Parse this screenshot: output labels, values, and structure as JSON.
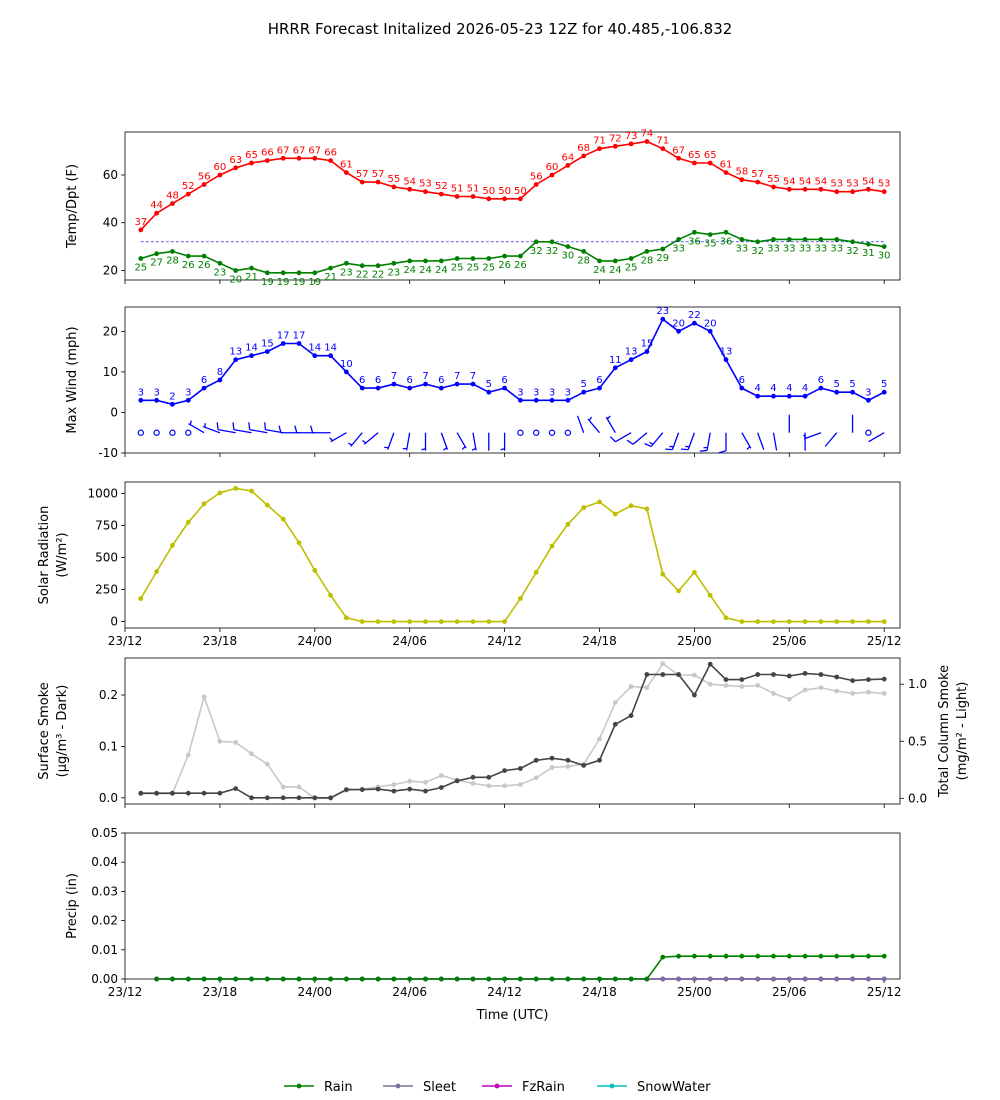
{
  "title": "HRRR Forecast Initalized 2026-05-23 12Z for 40.485,-106.832",
  "x_axis": {
    "label": "Time (UTC)",
    "ticks": [
      "23/12",
      "23/18",
      "24/00",
      "24/06",
      "24/12",
      "24/18",
      "25/00",
      "25/06",
      "25/12"
    ]
  },
  "colors": {
    "temp": "#ff0000",
    "dewpoint": "#008000",
    "wind": "#0000ff",
    "solar": "#bfbf00",
    "smoke_surface": "#444444",
    "smoke_column": "#c8c8c8",
    "rain": "#008000",
    "sleet": "#7f6f9f",
    "fzrain": "#bf00bf",
    "snowwater": "#00bfbf"
  },
  "chart_data": [
    {
      "type": "line",
      "ylabel": "Temp/Dpt (F)",
      "ylim": [
        16,
        78
      ],
      "yticks": [
        20,
        40,
        60
      ],
      "x_hours": [
        1,
        2,
        3,
        4,
        5,
        6,
        7,
        8,
        9,
        10,
        11,
        12,
        13,
        14,
        15,
        16,
        17,
        18,
        19,
        20,
        21,
        22,
        23,
        24,
        25,
        26,
        27,
        28,
        29,
        30,
        31,
        32,
        33,
        34,
        35,
        36,
        37,
        38,
        39,
        40,
        41,
        42,
        43,
        44,
        45,
        46,
        47,
        48
      ],
      "reference_line": 32,
      "series": [
        {
          "key": "temp",
          "values": [
            37,
            44,
            48,
            52,
            56,
            60,
            63,
            65,
            66,
            67,
            67,
            67,
            66,
            61,
            57,
            57,
            55,
            54,
            53,
            52,
            51,
            51,
            50,
            50,
            50,
            56,
            60,
            64,
            68,
            71,
            72,
            73,
            74,
            71,
            67,
            65,
            65,
            61,
            58,
            57,
            55,
            54,
            54,
            54,
            53,
            53,
            54,
            53
          ]
        },
        {
          "key": "dewpoint",
          "values": [
            25,
            27,
            28,
            26,
            26,
            23,
            20,
            21,
            19,
            19,
            19,
            19,
            21,
            23,
            22,
            22,
            23,
            24,
            24,
            24,
            25,
            25,
            25,
            26,
            26,
            32,
            32,
            30,
            28,
            24,
            24,
            25,
            28,
            29,
            33,
            36,
            35,
            36,
            33,
            32,
            33,
            33,
            33,
            33,
            33,
            32,
            31,
            30
          ]
        }
      ]
    },
    {
      "type": "line",
      "ylabel": "Max Wind (mph)",
      "ylim": [
        -10,
        26
      ],
      "yticks": [
        -10,
        0,
        10,
        20
      ],
      "x_hours": [
        1,
        2,
        3,
        4,
        5,
        6,
        7,
        8,
        9,
        10,
        11,
        12,
        13,
        14,
        15,
        16,
        17,
        18,
        19,
        20,
        21,
        22,
        23,
        24,
        25,
        26,
        27,
        28,
        29,
        30,
        31,
        32,
        33,
        34,
        35,
        36,
        37,
        38,
        39,
        40,
        41,
        42,
        43,
        44,
        45,
        46,
        47,
        48
      ],
      "series": [
        {
          "key": "wind",
          "values": [
            3,
            3,
            2,
            3,
            6,
            8,
            13,
            14,
            15,
            17,
            17,
            14,
            14,
            10,
            6,
            6,
            7,
            6,
            7,
            6,
            7,
            7,
            5,
            6,
            3,
            3,
            3,
            3,
            5,
            6,
            11,
            13,
            15,
            23,
            20,
            22,
            20,
            13,
            6,
            4,
            4,
            4,
            4,
            6,
            5,
            5,
            3,
            5
          ]
        }
      ],
      "wind_barbs": {
        "baseline": -5,
        "direction_deg": [
          240,
          0,
          0,
          330,
          300,
          290,
          280,
          280,
          280,
          280,
          270,
          270,
          270,
          240,
          220,
          230,
          200,
          190,
          180,
          160,
          150,
          170,
          180,
          180,
          0,
          0,
          160,
          0,
          340,
          320,
          330,
          240,
          230,
          220,
          200,
          200,
          190,
          180,
          150,
          160,
          170,
          0,
          180,
          250,
          220,
          0,
          240,
          240
        ]
      }
    },
    {
      "type": "line",
      "ylabel": "Solar Radiation",
      "ylabel_units": "(W/m²)",
      "ylim": [
        -50,
        1090
      ],
      "yticks": [
        0,
        250,
        500,
        750,
        1000
      ],
      "x_hours": [
        1,
        2,
        3,
        4,
        5,
        6,
        7,
        8,
        9,
        10,
        11,
        12,
        13,
        14,
        15,
        16,
        17,
        18,
        19,
        20,
        21,
        22,
        23,
        24,
        25,
        26,
        27,
        28,
        29,
        30,
        31,
        32,
        33,
        34,
        35,
        36,
        37,
        38,
        39,
        40,
        41,
        42,
        43,
        44,
        45,
        46,
        47,
        48
      ],
      "series": [
        {
          "key": "solar",
          "values": [
            180,
            390,
            595,
            775,
            920,
            1005,
            1040,
            1020,
            910,
            800,
            615,
            400,
            205,
            30,
            0,
            0,
            0,
            0,
            0,
            0,
            0,
            0,
            0,
            0,
            180,
            385,
            590,
            760,
            890,
            935,
            840,
            905,
            880,
            370,
            240,
            385,
            205,
            30,
            0,
            0,
            0,
            0,
            0,
            0,
            0,
            0,
            0,
            0
          ]
        }
      ]
    },
    {
      "type": "line",
      "ylabel": "Surface Smoke",
      "ylabel_units": "(μg/m³ - Dark)",
      "ylabel_right": "Total Column Smoke",
      "ylabel_right_units": "(mg/m² - Light)",
      "ylim": [
        -0.012,
        0.272
      ],
      "yticks": [
        0.0,
        0.1,
        0.2
      ],
      "ylim_right": [
        -0.05,
        1.23
      ],
      "yticks_right": [
        0.0,
        0.5,
        1.0
      ],
      "x_hours": [
        1,
        2,
        3,
        4,
        5,
        6,
        7,
        8,
        9,
        10,
        11,
        12,
        13,
        14,
        15,
        16,
        17,
        18,
        19,
        20,
        21,
        22,
        23,
        24,
        25,
        26,
        27,
        28,
        29,
        30,
        31,
        32,
        33,
        34,
        35,
        36,
        37,
        38,
        39,
        40,
        41,
        42,
        43,
        44,
        45,
        46,
        47,
        48
      ],
      "series": [
        {
          "key": "smoke_surface",
          "axis": "left",
          "values": [
            0.009,
            0.009,
            0.009,
            0.009,
            0.009,
            0.009,
            0.018,
            0.0,
            0.0,
            0.0,
            0.0,
            0.0,
            0.0,
            0.016,
            0.016,
            0.017,
            0.013,
            0.017,
            0.013,
            0.02,
            0.033,
            0.04,
            0.04,
            0.053,
            0.057,
            0.073,
            0.077,
            0.073,
            0.063,
            0.073,
            0.143,
            0.16,
            0.24,
            0.24,
            0.24,
            0.2,
            0.26,
            0.23,
            0.23,
            0.24,
            0.24,
            0.237,
            0.242,
            0.24,
            0.235,
            0.228,
            0.23,
            0.231
          ]
        },
        {
          "key": "smoke_column",
          "axis": "right",
          "values": [
            0.04,
            0.04,
            0.04,
            0.38,
            0.89,
            0.5,
            0.49,
            0.39,
            0.3,
            0.1,
            0.1,
            0.0,
            0.0,
            0.07,
            0.08,
            0.1,
            0.12,
            0.15,
            0.14,
            0.2,
            0.16,
            0.13,
            0.11,
            0.11,
            0.12,
            0.18,
            0.27,
            0.28,
            0.3,
            0.52,
            0.84,
            0.98,
            0.97,
            1.18,
            1.08,
            1.08,
            1.0,
            0.99,
            0.98,
            0.99,
            0.92,
            0.87,
            0.95,
            0.97,
            0.94,
            0.92,
            0.93,
            0.92
          ]
        }
      ]
    },
    {
      "type": "line",
      "ylabel": "Precip (in)",
      "ylim": [
        0.0,
        0.05
      ],
      "yticks": [
        "0.00",
        "0.01",
        "0.02",
        "0.03",
        "0.04",
        "0.05"
      ],
      "x_hours": [
        2,
        3,
        4,
        5,
        6,
        7,
        8,
        9,
        10,
        11,
        12,
        13,
        14,
        15,
        16,
        17,
        18,
        19,
        20,
        21,
        22,
        23,
        24,
        25,
        26,
        27,
        28,
        29,
        30,
        31,
        32,
        33,
        34,
        35,
        36,
        37,
        38,
        39,
        40,
        41,
        42,
        43,
        44,
        45,
        46,
        47,
        48
      ],
      "series": [
        {
          "key": "rain",
          "name": "Rain",
          "values": [
            0,
            0,
            0,
            0,
            0,
            0,
            0,
            0,
            0,
            0,
            0,
            0,
            0,
            0,
            0,
            0,
            0,
            0,
            0,
            0,
            0,
            0,
            0,
            0,
            0,
            0,
            0,
            0,
            0,
            0,
            0,
            0,
            0.0075,
            0.0078,
            0.0078,
            0.0078,
            0.0078,
            0.0078,
            0.0078,
            0.0078,
            0.0078,
            0.0078,
            0.0078,
            0.0078,
            0.0078,
            0.0078,
            0.0078
          ]
        },
        {
          "key": "sleet",
          "name": "Sleet",
          "values": [
            0,
            0,
            0,
            0,
            0,
            0,
            0,
            0,
            0,
            0,
            0,
            0,
            0,
            0,
            0,
            0,
            0,
            0,
            0,
            0,
            0,
            0,
            0,
            0,
            0,
            0,
            0,
            0,
            0,
            0,
            0,
            0,
            0,
            0,
            0,
            0,
            0,
            0,
            0,
            0,
            0,
            0,
            0,
            0,
            0,
            0,
            0
          ]
        },
        {
          "key": "fzrain",
          "name": "FzRain",
          "values": [
            0,
            0,
            0,
            0,
            0,
            0,
            0,
            0,
            0,
            0,
            0,
            0,
            0,
            0,
            0,
            0,
            0,
            0,
            0,
            0,
            0,
            0,
            0,
            0,
            0,
            0,
            0,
            0,
            0,
            0,
            0,
            0,
            0,
            0,
            0,
            0,
            0,
            0,
            0,
            0,
            0,
            0,
            0,
            0,
            0,
            0,
            0
          ]
        },
        {
          "key": "snowwater",
          "name": "SnowWater",
          "values": [
            0,
            0,
            0,
            0,
            0,
            0,
            0,
            0,
            0,
            0,
            0,
            0,
            0,
            0,
            0,
            0,
            0,
            0,
            0,
            0,
            0,
            0,
            0,
            0,
            0,
            0,
            0,
            0,
            0,
            0,
            0,
            0,
            0,
            0,
            0,
            0,
            0,
            0,
            0,
            0,
            0,
            0,
            0,
            0,
            0,
            0,
            0
          ]
        }
      ],
      "legend": [
        "Rain",
        "Sleet",
        "FzRain",
        "SnowWater"
      ],
      "legend_position": "bottom-center"
    }
  ]
}
